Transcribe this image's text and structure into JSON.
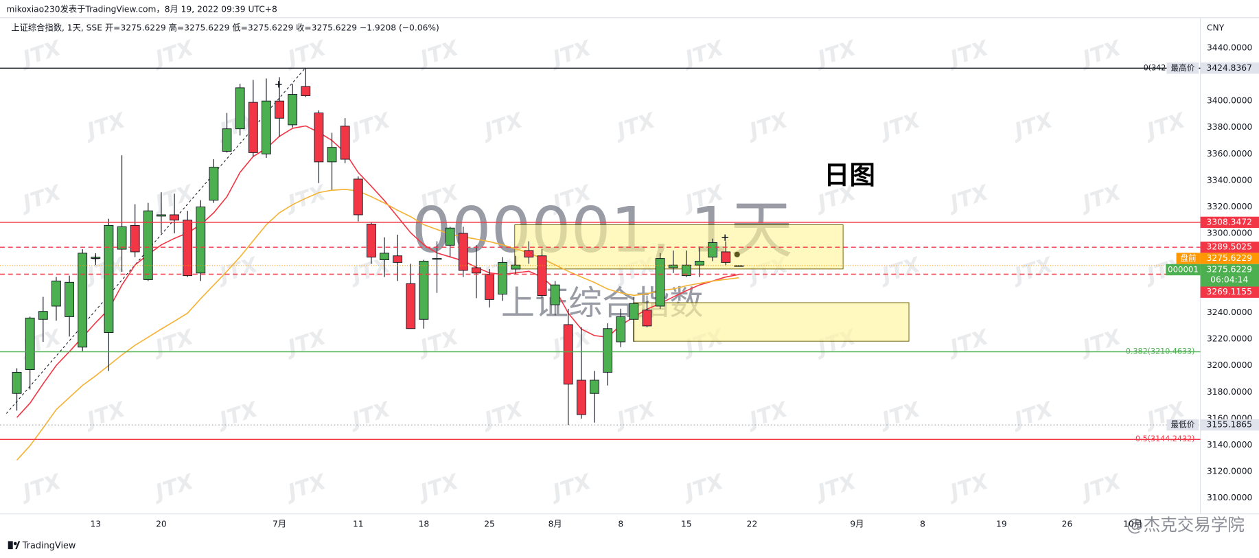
{
  "chart_data": {
    "type": "candlestick",
    "header": "mikoxiao230发表于TradingView.com，8月 19, 2022 09:39 UTC+8",
    "legend": "上证综合指数, 1天, SSE  开=3275.6229  高=3275.6229  低=3275.6229  收=3275.6229  −1.9208 (−0.06%)",
    "currency": "CNY",
    "symbol_watermark": "000001, 1天",
    "name_watermark": "上证综合指数",
    "annotation": "日图",
    "brand": "TradingView",
    "corner_watermark": "@杰克交易学院",
    "watermark": "JTX",
    "up_color": "#4caf50",
    "down_color": "#f23645",
    "ylim": [
      3088,
      3463
    ],
    "yticks": [
      {
        "value": 3440,
        "label": "3440.0000"
      },
      {
        "value": 3400,
        "label": "3400.0000"
      },
      {
        "value": 3380,
        "label": "3380.0000"
      },
      {
        "value": 3360,
        "label": "3360.0000"
      },
      {
        "value": 3340,
        "label": "3340.0000"
      },
      {
        "value": 3320,
        "label": "3320.0000"
      },
      {
        "value": 3300,
        "label": "3300.0000"
      },
      {
        "value": 3240,
        "label": "3240.0000"
      },
      {
        "value": 3220,
        "label": "3220.0000"
      },
      {
        "value": 3200,
        "label": "3200.0000"
      },
      {
        "value": 3180,
        "label": "3180.0000"
      },
      {
        "value": 3160,
        "label": "3160.0000"
      },
      {
        "value": 3140,
        "label": "3140.0000"
      },
      {
        "value": 3120,
        "label": "3120.0000"
      },
      {
        "value": 3100,
        "label": "3100.0000"
      }
    ],
    "categories": [
      null,
      null,
      null,
      null,
      null,
      null,
      "13",
      null,
      null,
      null,
      null,
      "20",
      null,
      null,
      null,
      null,
      null,
      null,
      null,
      null,
      "7月",
      null,
      null,
      null,
      null,
      null,
      "11",
      null,
      null,
      null,
      null,
      "18",
      null,
      null,
      null,
      null,
      "25",
      null,
      null,
      null,
      null,
      "8月",
      null,
      null,
      null,
      null,
      "8",
      null,
      null,
      null,
      null,
      "15",
      null,
      null,
      null,
      null,
      "22",
      null,
      null,
      null,
      null,
      null,
      null,
      null,
      "9月",
      null,
      null,
      null,
      null,
      "8",
      null,
      null,
      null,
      null,
      null,
      "19",
      null,
      null,
      null,
      null,
      "26",
      null,
      null,
      null,
      null,
      "10月",
      null,
      null,
      null,
      null,
      null
    ],
    "open": [
      3179,
      3197,
      3235,
      3245,
      3237,
      3214,
      3281,
      3225,
      3288,
      3306,
      3265,
      3313,
      3314,
      3310,
      3270,
      3325,
      3362,
      3379,
      3399,
      3360,
      3400,
      3382,
      3411,
      3391,
      3354,
      3381,
      3341,
      3307,
      3280,
      3283,
      3262,
      3235,
      3281,
      3291,
      3300,
      3274,
      3269,
      3254,
      3273,
      3287,
      3283,
      3246,
      3231,
      3189,
      3179,
      3195,
      3218,
      3235,
      3242,
      3245,
      3274,
      3268,
      3276,
      3282,
      3286,
      3275.6229,
      null,
      null,
      null,
      null,
      null,
      null,
      null,
      null,
      null,
      null,
      null,
      null,
      null,
      null,
      null,
      null,
      null,
      null,
      null,
      null,
      null,
      null,
      null,
      null,
      null,
      null,
      null,
      null,
      null,
      null,
      null,
      null,
      null,
      null,
      null
    ],
    "high": [
      3198,
      3237,
      3252,
      3267,
      3268,
      3288,
      3285,
      3311,
      3359,
      3322,
      3323,
      3331,
      3330,
      3317,
      3325,
      3356,
      3391,
      3413,
      3416,
      3417,
      3418,
      3413,
      3424.8367,
      3393,
      3376,
      3387,
      3343,
      3308,
      3297,
      3299,
      3277,
      3280,
      3294,
      3305,
      3305,
      3291,
      3273,
      3282,
      3283,
      3294,
      3288,
      3264,
      3243,
      3229,
      3196,
      3232,
      3243,
      3252,
      3253,
      3285,
      3287,
      3287,
      3290,
      3296,
      3294,
      3275.6229,
      null,
      null,
      null,
      null,
      null,
      null,
      null,
      null,
      null,
      null,
      null,
      null,
      null,
      null,
      null,
      null,
      null,
      null,
      null,
      null,
      null,
      null,
      null,
      null,
      null,
      null,
      null,
      null,
      null,
      null,
      null,
      null,
      null,
      null,
      null
    ],
    "low": [
      3166,
      3182,
      3218,
      3234,
      3222,
      3211,
      3276,
      3196,
      3271,
      3282,
      3264,
      3300,
      3300,
      3267,
      3264,
      3323,
      3361,
      3374,
      3358,
      3357,
      3373,
      3380,
      3403,
      3338,
      3333,
      3353,
      3309,
      3277,
      3267,
      3264,
      3228,
      3228,
      3255,
      3282,
      3267,
      3251,
      3244,
      3249,
      3269,
      3277,
      3251,
      3238,
      3155.1865,
      3160,
      3157,
      3185,
      3214,
      3218,
      3229,
      3243,
      3270,
      3267,
      3267,
      3279,
      3276,
      3275.6229,
      null,
      null,
      null,
      null,
      null,
      null,
      null,
      null,
      null,
      null,
      null,
      null,
      null,
      null,
      null,
      null,
      null,
      null,
      null,
      null,
      null,
      null,
      null,
      null,
      null,
      null,
      null,
      null,
      null,
      null,
      null,
      null,
      null,
      null,
      null
    ],
    "close": [
      3195,
      3236,
      3241,
      3264,
      3263,
      3285,
      3282,
      3306,
      3305,
      3286,
      3317,
      3314,
      3310,
      3268,
      3320,
      3350,
      3379,
      3410,
      3361,
      3400,
      3387,
      3405,
      3404,
      3354,
      3365,
      3356,
      3314,
      3282,
      3285,
      3278,
      3228,
      3279,
      3281,
      3304,
      3272,
      3270,
      3250,
      3278,
      3276,
      3282,
      3253,
      3261,
      3186,
      3163,
      3189,
      3228,
      3237,
      3247,
      3230,
      3281,
      3276,
      3276,
      3279,
      3293,
      3278,
      3275.6229,
      null,
      null,
      null,
      null,
      null,
      null,
      null,
      null,
      null,
      null,
      null,
      null,
      null,
      null,
      null,
      null,
      null,
      null,
      null,
      null,
      null,
      null,
      null,
      null,
      null,
      null,
      null,
      null,
      null,
      null,
      null,
      null,
      null,
      null,
      null
    ],
    "overlays": [
      {
        "color": "#f23645",
        "values": [
          3160.8,
          3171.7,
          3186.3,
          3200.2,
          3210.6,
          3221.5,
          3232.4,
          3242.7,
          3260.9,
          3276.1,
          3284.0,
          3291.3,
          3296.2,
          3300.4,
          3306.5,
          3315.6,
          3327.7,
          3346.0,
          3358.1,
          3364.2,
          3373.3,
          3379.4,
          3381.2,
          3376.3,
          3370.2,
          3361.1,
          3346.0,
          3335.6,
          3324.7,
          3312.6,
          3300.4,
          3291.3,
          3285.2,
          3282.2,
          3279.2,
          3274.3,
          3270.1,
          3268.9,
          3270.1,
          3271.3,
          3267.0,
          3257.9,
          3239.7,
          3227.6,
          3222.7,
          3221.5,
          3230.6,
          3236.7,
          3242.7,
          3247.0,
          3251.9,
          3256.7,
          3261.0,
          3264.0,
          3267.0,
          3268.9,
          null,
          null,
          null,
          null,
          null,
          null,
          null,
          null,
          null,
          null,
          null,
          null,
          null,
          null,
          null,
          null,
          null,
          null,
          null,
          null,
          null,
          null,
          null,
          null,
          null,
          null,
          null,
          null,
          null,
          null,
          null,
          null,
          null,
          null,
          null
        ]
      },
      {
        "color": "#f5b335",
        "values": [
          3128.6,
          3139.5,
          3152.9,
          3166.8,
          3175.9,
          3185.1,
          3192.3,
          3200.2,
          3208.1,
          3215.4,
          3221.5,
          3227.6,
          3233.6,
          3239.7,
          3250.6,
          3261.0,
          3271.3,
          3282.2,
          3294.4,
          3306.5,
          3315.6,
          3321.7,
          3326.5,
          3330.8,
          3332.6,
          3333.2,
          3332.0,
          3327.7,
          3322.9,
          3317.4,
          3312.6,
          3306.5,
          3302.9,
          3299.2,
          3297.4,
          3295.6,
          3293.7,
          3291.3,
          3288.3,
          3285.2,
          3281.0,
          3276.1,
          3271.3,
          3267.0,
          3262.8,
          3257.9,
          3254.9,
          3253.1,
          3254.3,
          3256.7,
          3257.9,
          3260.4,
          3262.2,
          3264.0,
          3265.2,
          3266.4,
          null,
          null,
          null,
          null,
          null,
          null,
          null,
          null,
          null,
          null,
          null,
          null,
          null,
          null,
          null,
          null,
          null,
          null,
          null,
          null,
          null,
          null,
          null,
          null,
          null,
          null,
          null,
          null,
          null,
          null,
          null,
          null,
          null,
          null,
          null
        ]
      }
    ],
    "levels": [
      {
        "value": 3424.8367,
        "color": "#131722",
        "style": "solid",
        "label": "0(342",
        "note": "最高价",
        "tag_bg": "#e0e3eb",
        "tag_fg": "#131722"
      },
      {
        "value": 3308.3472,
        "color": "#f23645",
        "style": "solid",
        "tag_bg": "#f23645",
        "tag_fg": "#ffffff"
      },
      {
        "value": 3289.5025,
        "color": "#f23645",
        "style": "dashed",
        "tag_bg": "#f23645",
        "tag_fg": "#ffffff"
      },
      {
        "value": 3269.1155,
        "color": "#f23645",
        "style": "dashed",
        "tag_bg": "#f23645",
        "tag_fg": "#ffffff"
      },
      {
        "value": 3210.4633,
        "color": "#4caf50",
        "style": "solid",
        "label": "0.382(3210.4633)"
      },
      {
        "value": 3155.1865,
        "color": "#9598a1",
        "style": "dotted",
        "note": "最低价",
        "tag_bg": "#e0e3eb",
        "tag_fg": "#131722"
      },
      {
        "value": 3144.2432,
        "color": "#f23645",
        "style": "solid",
        "label": "0.5(3144.2432)"
      }
    ],
    "premarket": {
      "label": "盘前",
      "value": 3275.6229,
      "color": "#ff9800"
    },
    "last": {
      "symbol": "000001",
      "value": 3275.6229,
      "countdown": "06:04:14",
      "color": "#4caf50"
    }
  }
}
